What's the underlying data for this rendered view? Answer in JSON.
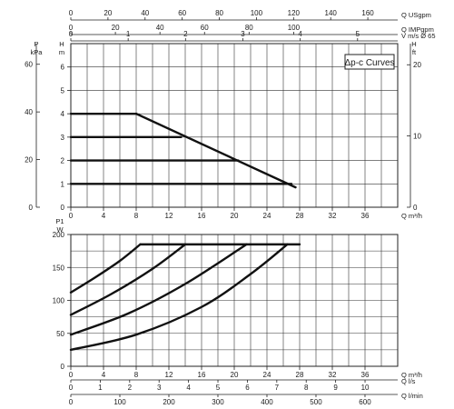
{
  "chart_data": [
    {
      "type": "line",
      "title": "Δp-c Curves",
      "xlabel": "Q m³/h",
      "ylabel": "H m",
      "xlim": [
        0,
        40
      ],
      "ylim": [
        0,
        7
      ],
      "grid": true,
      "x_ticks": [
        0,
        4,
        8,
        12,
        16,
        20,
        24,
        28,
        32,
        36
      ],
      "y_ticks": [
        0,
        1,
        2,
        3,
        4,
        5,
        6
      ],
      "left_axis": {
        "label_top": "P",
        "label_bottom": "kPa",
        "ticks": [
          0,
          20,
          40,
          60
        ]
      },
      "right_axis": {
        "label_top": "H",
        "label_bottom": "ft",
        "ticks": [
          0,
          10,
          20
        ]
      },
      "top_axes": [
        {
          "label": "Q USgpm",
          "ticks": [
            0,
            20,
            40,
            60,
            80,
            100,
            120,
            140,
            160
          ],
          "max": 176.1
        },
        {
          "label": "Q IMPgpm",
          "ticks": [
            0,
            20,
            40,
            60,
            80,
            100
          ],
          "max": 146.7
        },
        {
          "label": "V m/s Ø 65",
          "ticks": [
            0,
            1,
            2,
            3,
            4,
            5
          ],
          "max": 5.7
        }
      ],
      "series": [
        {
          "values": [
            [
              0,
              1
            ],
            [
              27,
              1
            ]
          ]
        },
        {
          "values": [
            [
              0,
              2
            ],
            [
              20.5,
              2
            ]
          ]
        },
        {
          "values": [
            [
              0,
              3
            ],
            [
              13.5,
              3
            ]
          ]
        },
        {
          "values": [
            [
              0,
              4
            ],
            [
              8,
              4
            ]
          ]
        },
        {
          "values": [
            [
              8,
              4
            ],
            [
              27.5,
              0.85
            ]
          ]
        }
      ]
    },
    {
      "type": "line",
      "xlabel": "Q m³/h",
      "ylabel": "P1 W",
      "xlim": [
        0,
        40
      ],
      "ylim": [
        0,
        200
      ],
      "grid": true,
      "x_ticks": [
        0,
        4,
        8,
        12,
        16,
        20,
        24,
        28,
        32,
        36
      ],
      "y_ticks": [
        0,
        50,
        100,
        150,
        200
      ],
      "bottom_axes": [
        {
          "label": "Q l/s",
          "ticks": [
            0,
            1,
            2,
            3,
            4,
            5,
            6,
            7,
            8,
            9,
            10
          ],
          "max": 11.11
        },
        {
          "label": "Q l/min",
          "ticks": [
            0,
            100,
            200,
            300,
            400,
            500,
            600
          ],
          "max": 666.7
        }
      ],
      "series": [
        {
          "values": [
            [
              0,
              112
            ],
            [
              3,
              135
            ],
            [
              6,
              160
            ],
            [
              8.5,
              185
            ]
          ]
        },
        {
          "values": [
            [
              0,
              78
            ],
            [
              5,
              110
            ],
            [
              10,
              148
            ],
            [
              14,
              185
            ]
          ]
        },
        {
          "values": [
            [
              0,
              48
            ],
            [
              7,
              80
            ],
            [
              14,
              125
            ],
            [
              21.5,
              185
            ]
          ]
        },
        {
          "values": [
            [
              0,
              25
            ],
            [
              8,
              48
            ],
            [
              16,
              90
            ],
            [
              22,
              140
            ],
            [
              26.5,
              185
            ]
          ]
        },
        {
          "values": [
            [
              8.5,
              185
            ],
            [
              28,
              185
            ]
          ]
        }
      ]
    }
  ]
}
